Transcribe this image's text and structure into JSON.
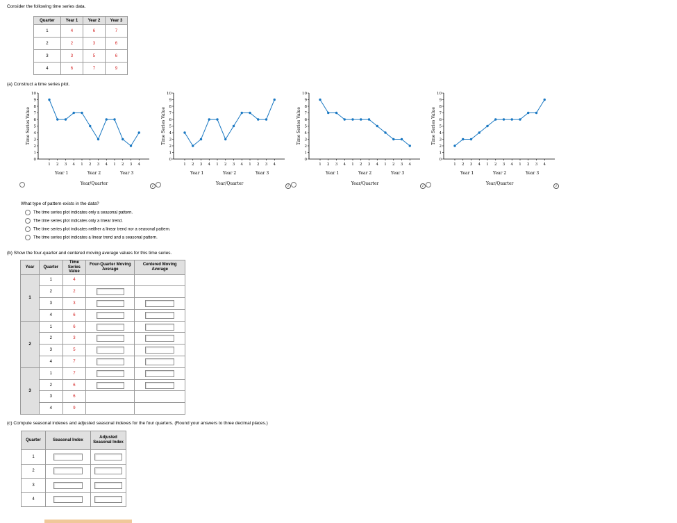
{
  "intro": "Consider the following time series data.",
  "data_table": {
    "headers": [
      "Quarter",
      "Year 1",
      "Year 2",
      "Year 3"
    ],
    "rows": [
      [
        "1",
        "4",
        "6",
        "7"
      ],
      [
        "2",
        "2",
        "3",
        "6"
      ],
      [
        "3",
        "3",
        "5",
        "6"
      ],
      [
        "4",
        "6",
        "7",
        "9"
      ]
    ]
  },
  "part_a": {
    "prompt": "(a)  Construct a time series plot.",
    "ylabel": "Time Series Value",
    "xlabel": "Year/Quarter",
    "years": [
      "Year 1",
      "Year 2",
      "Year 3"
    ],
    "quarters": [
      "1",
      "2",
      "3",
      "4"
    ]
  },
  "chart_data": [
    {
      "type": "line",
      "title": "",
      "xlabel": "Year/Quarter",
      "ylabel": "Time Series Value",
      "ylim": [
        0,
        10
      ],
      "x": [
        "Y1Q1",
        "Y1Q2",
        "Y1Q3",
        "Y1Q4",
        "Y2Q1",
        "Y2Q2",
        "Y2Q3",
        "Y2Q4",
        "Y3Q1",
        "Y3Q2",
        "Y3Q3",
        "Y3Q4"
      ],
      "values": [
        9,
        6,
        6,
        7,
        7,
        5,
        3,
        6,
        6,
        3,
        2,
        4
      ]
    },
    {
      "type": "line",
      "title": "",
      "xlabel": "Year/Quarter",
      "ylabel": "Time Series Value",
      "ylim": [
        0,
        10
      ],
      "x": [
        "Y1Q1",
        "Y1Q2",
        "Y1Q3",
        "Y1Q4",
        "Y2Q1",
        "Y2Q2",
        "Y2Q3",
        "Y2Q4",
        "Y3Q1",
        "Y3Q2",
        "Y3Q3",
        "Y3Q4"
      ],
      "values": [
        4,
        2,
        3,
        6,
        6,
        3,
        5,
        7,
        7,
        6,
        6,
        9
      ]
    },
    {
      "type": "line",
      "title": "",
      "xlabel": "Year/Quarter",
      "ylabel": "Time Series Value",
      "ylim": [
        0,
        10
      ],
      "x": [
        "Y1Q1",
        "Y1Q2",
        "Y1Q3",
        "Y1Q4",
        "Y2Q1",
        "Y2Q2",
        "Y2Q3",
        "Y2Q4",
        "Y3Q1",
        "Y3Q2",
        "Y3Q3",
        "Y3Q4"
      ],
      "values": [
        9,
        7,
        7,
        6,
        6,
        6,
        6,
        5,
        4,
        3,
        3,
        2
      ]
    },
    {
      "type": "line",
      "title": "",
      "xlabel": "Year/Quarter",
      "ylabel": "Time Series Value",
      "ylim": [
        0,
        10
      ],
      "x": [
        "Y1Q1",
        "Y1Q2",
        "Y1Q3",
        "Y1Q4",
        "Y2Q1",
        "Y2Q2",
        "Y2Q3",
        "Y2Q4",
        "Y3Q1",
        "Y3Q2",
        "Y3Q3",
        "Y3Q4"
      ],
      "values": [
        2,
        3,
        3,
        4,
        5,
        6,
        6,
        6,
        6,
        7,
        7,
        9
      ]
    }
  ],
  "pattern": {
    "question": "What type of pattern exists in the data?",
    "options": [
      "The time series plot indicates only a seasonal pattern.",
      "The time series plot indicates only a linear trend.",
      "The time series plot indicates neither a linear trend nor a seasonal pattern.",
      "The time series plot indicates a linear trend and a seasonal pattern."
    ]
  },
  "part_b": {
    "prompt": "(b)  Show the four-quarter and centered moving average values for this time series.",
    "headers": [
      "Year",
      "Quarter",
      "Time Series Value",
      "Four-Quarter Moving Average",
      "Centered Moving Average"
    ],
    "years": [
      "1",
      "2",
      "3"
    ],
    "quarters": [
      "1",
      "2",
      "3",
      "4",
      "1",
      "2",
      "3",
      "4",
      "1",
      "2",
      "3",
      "4"
    ],
    "values": [
      "4",
      "2",
      "3",
      "6",
      "6",
      "3",
      "5",
      "7",
      "7",
      "6",
      "6",
      "9"
    ]
  },
  "part_c": {
    "prompt": "(c)  Compute seasonal indexes and adjusted seasonal indexes for the four quarters. (Round your answers to three decimal places.)",
    "headers": [
      "Quarter",
      "Seasonal Index",
      "Adjusted Seasonal Index"
    ],
    "quarters": [
      "1",
      "2",
      "3",
      "4"
    ]
  },
  "info_icon": "i"
}
